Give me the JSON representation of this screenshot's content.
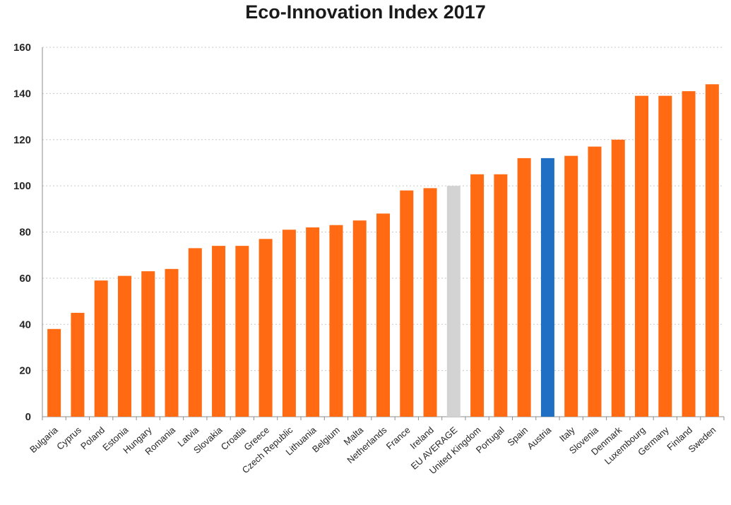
{
  "chart_data": {
    "type": "bar",
    "title": "Eco-Innovation Index 2017",
    "xlabel": "",
    "ylabel": "",
    "ylim": [
      0,
      160
    ],
    "yticks": [
      0,
      20,
      40,
      60,
      80,
      100,
      120,
      140,
      160
    ],
    "grid": true,
    "legend": "none",
    "categories": [
      "Bulgaria",
      "Cyprus",
      "Poland",
      "Estonia",
      "Hungary",
      "Romania",
      "Latvia",
      "Slovakia",
      "Croatia",
      "Greece",
      "Czech Republic",
      "Lithuania",
      "Belgium",
      "Malta",
      "Netherlands",
      "France",
      "Ireland",
      "EU AVERAGE",
      "United Kingdom",
      "Portugal",
      "Spain",
      "Austria",
      "Italy",
      "Slovenia",
      "Denmark",
      "Luxembourg",
      "Germany",
      "Finland",
      "Sweden"
    ],
    "values": [
      38,
      45,
      59,
      61,
      63,
      64,
      73,
      74,
      74,
      77,
      81,
      82,
      83,
      85,
      88,
      98,
      99,
      100,
      105,
      105,
      112,
      112,
      113,
      117,
      120,
      139,
      139,
      141,
      144
    ],
    "colors": {
      "default": "#FF6A13",
      "EU AVERAGE": "#D3D3D3",
      "Austria": "#1F6FC5"
    }
  }
}
